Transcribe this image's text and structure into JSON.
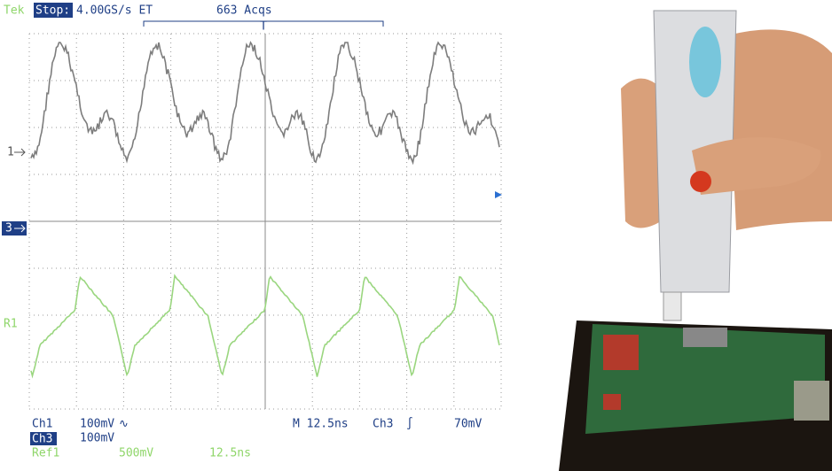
{
  "header": {
    "brand": "Tek",
    "state": "Stop:",
    "rate": "4.00GS/s ET",
    "acqs": "663 Acqs",
    "trigger_marker": "T"
  },
  "markers": {
    "ch1": "1",
    "ch3": "3",
    "ref1": "R1"
  },
  "readout": {
    "ch1_label": "Ch1",
    "ch1_scale": "100mV",
    "ch1_coupling": "∿",
    "timebase": "M 12.5ns",
    "trigger_source": "Ch3",
    "trigger_slope": "∫",
    "trigger_level": "70mV",
    "ch3_label": "Ch3",
    "ch3_scale": "100mV",
    "ref1_label": "Ref1",
    "ref1_scale": "500mV",
    "ref1_time": "12.5ns"
  }
}
